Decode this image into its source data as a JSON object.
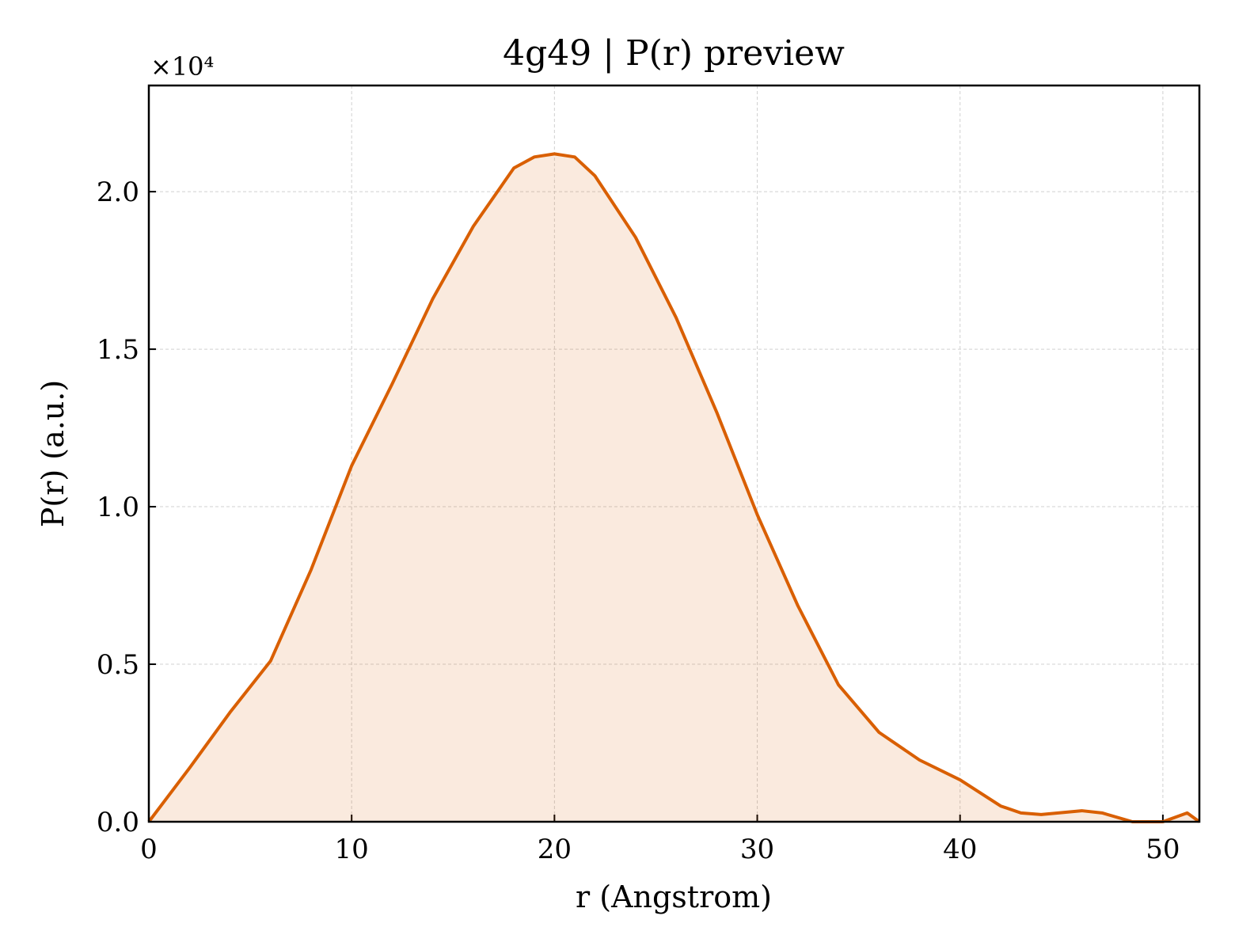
{
  "chart_data": {
    "type": "line",
    "title": "4g49 | P(r) preview",
    "xlabel": "r (Angstrom)",
    "ylabel": "P(r) (a.u.)",
    "offset_text": "×10⁴",
    "x": [
      0,
      2,
      4,
      6,
      8,
      10,
      12,
      14,
      16,
      18,
      19,
      20,
      21,
      22,
      24,
      26,
      28,
      30,
      32,
      34,
      36,
      38,
      40,
      42,
      43,
      44,
      46,
      47,
      48.5,
      50,
      51.2,
      51.8
    ],
    "series": [
      {
        "name": "P(r)",
        "color": "#d95f02",
        "fill": true,
        "values": [
          0,
          1700,
          3470,
          5100,
          8000,
          11300,
          13900,
          16600,
          18900,
          20750,
          21100,
          21200,
          21100,
          20500,
          18550,
          16000,
          13000,
          9750,
          6860,
          4350,
          2840,
          1960,
          1330,
          500,
          280,
          230,
          350,
          280,
          0,
          0,
          280,
          0
        ]
      }
    ],
    "xlim": [
      0,
      51.8
    ],
    "ylim": [
      0,
      23370
    ],
    "xticks": [
      0,
      10,
      20,
      30,
      40,
      50
    ],
    "yticks": [
      {
        "value": 0,
        "label": "0.0"
      },
      {
        "value": 5000,
        "label": "0.5"
      },
      {
        "value": 10000,
        "label": "1.0"
      },
      {
        "value": 15000,
        "label": "1.5"
      },
      {
        "value": 20000,
        "label": "2.0"
      }
    ],
    "grid": true
  }
}
